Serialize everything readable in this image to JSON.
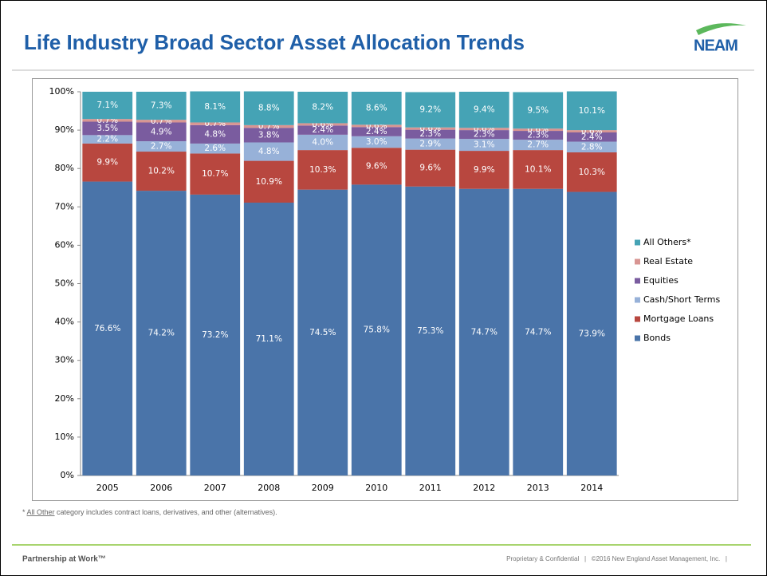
{
  "header": {
    "title": "Life Industry Broad Sector Asset Allocation Trends",
    "logo": "NEAM"
  },
  "chart_data": {
    "type": "stacked_bar",
    "categories": [
      "2005",
      "2006",
      "2007",
      "2008",
      "2009",
      "2010",
      "2011",
      "2012",
      "2013",
      "2014"
    ],
    "series": [
      {
        "name": "Bonds",
        "color": "#4a74a9",
        "values": [
          76.6,
          74.2,
          73.2,
          71.1,
          74.5,
          75.8,
          75.3,
          74.7,
          74.7,
          73.9
        ],
        "value_labels": [
          "76.6%",
          "74.2%",
          "73.2%",
          "71.1%",
          "74.5%",
          "75.8%",
          "75.3%",
          "74.7%",
          "74.7%",
          "73.9%"
        ]
      },
      {
        "name": "Mortgage Loans",
        "color": "#b8473f",
        "values": [
          9.9,
          10.2,
          10.7,
          10.9,
          10.3,
          9.6,
          9.6,
          9.9,
          10.1,
          10.3
        ],
        "value_labels": [
          "9.9%",
          "10.2%",
          "10.7%",
          "10.9%",
          "10.3%",
          "9.6%",
          "9.6%",
          "9.9%",
          "10.1%",
          "10.3%"
        ]
      },
      {
        "name": "Cash/Short Terms",
        "color": "#97b1d8",
        "values": [
          2.2,
          2.7,
          2.6,
          4.8,
          4.0,
          3.0,
          2.9,
          3.1,
          2.7,
          2.8
        ],
        "value_labels": [
          "2.2%",
          "2.7%",
          "2.6%",
          "4.8%",
          "4.0%",
          "3.0%",
          "2.9%",
          "3.1%",
          "2.7%",
          "2.8%"
        ]
      },
      {
        "name": "Equities",
        "color": "#7a5c9f",
        "values": [
          3.5,
          4.9,
          4.8,
          3.8,
          2.4,
          2.4,
          2.3,
          2.3,
          2.3,
          2.4
        ],
        "value_labels": [
          "3.5%",
          "4.9%",
          "4.8%",
          "3.8%",
          "2.4%",
          "2.4%",
          "2.3%",
          "2.3%",
          "2.3%",
          "2.4%"
        ]
      },
      {
        "name": "Real Estate",
        "color": "#d89592",
        "values": [
          0.7,
          0.7,
          0.7,
          0.7,
          0.6,
          0.6,
          0.6,
          0.6,
          0.6,
          0.6
        ],
        "value_labels": [
          "0.7%",
          "0.7%",
          "0.7%",
          "0.7%",
          "0.6%",
          "0.6%",
          "0.6%",
          "0.6%",
          "0.6%",
          "0.6%"
        ]
      },
      {
        "name": "All Others*",
        "color": "#45a3b5",
        "values": [
          7.1,
          7.3,
          8.1,
          8.8,
          8.2,
          8.6,
          9.2,
          9.4,
          9.5,
          10.1
        ],
        "value_labels": [
          "7.1%",
          "7.3%",
          "8.1%",
          "8.8%",
          "8.2%",
          "8.6%",
          "9.2%",
          "9.4%",
          "9.5%",
          "10.1%"
        ]
      }
    ],
    "ylim": [
      0,
      100
    ],
    "yticks": [
      {
        "value": 0,
        "label": "0%"
      },
      {
        "value": 10,
        "label": "10%"
      },
      {
        "value": 20,
        "label": "20%"
      },
      {
        "value": 30,
        "label": "30%"
      },
      {
        "value": 40,
        "label": "40%"
      },
      {
        "value": 50,
        "label": "50%"
      },
      {
        "value": 60,
        "label": "60%"
      },
      {
        "value": 70,
        "label": "70%"
      },
      {
        "value": 80,
        "label": "80%"
      },
      {
        "value": 90,
        "label": "90%"
      },
      {
        "value": 100,
        "label": "100%"
      }
    ],
    "legend": "right"
  },
  "footnote": {
    "mark": "* ",
    "link": "All Other",
    "rest": " category includes contract loans, derivatives, and other (alternatives)."
  },
  "footer": {
    "left": "Partnership at Work™",
    "right": "Proprietary & Confidential   |   ©2016 New England Asset Management, Inc.   |"
  }
}
